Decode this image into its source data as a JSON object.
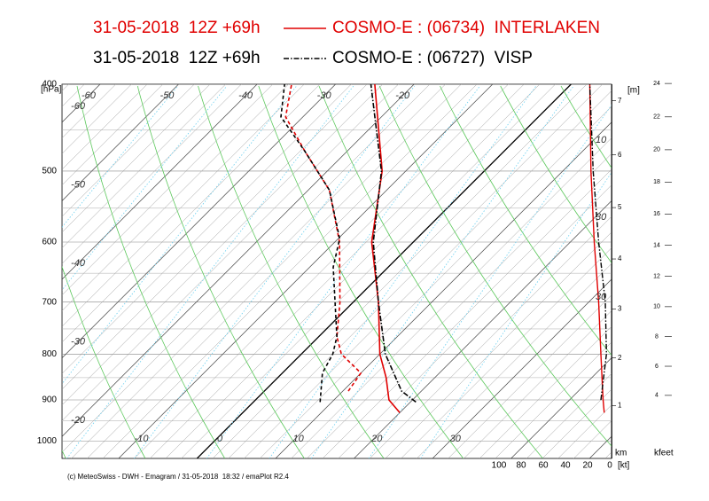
{
  "chart_data": {
    "type": "emagram",
    "stations": [
      {
        "run": "31-05-2018  12Z +69h",
        "name": "COSMO-E : (06734)  INTERLAKEN",
        "color": "#e00000",
        "style": "solid",
        "temperature": {
          "pressure": [
            930,
            900,
            850,
            800,
            700,
            600,
            500,
            400
          ],
          "values": [
            20,
            17,
            13.8,
            10,
            3.2,
            -5.3,
            -13,
            -25
          ]
        },
        "dewpoint": {
          "pressure": [
            880,
            840,
            800,
            765,
            700,
            600,
            525,
            475,
            435,
            400
          ],
          "values": [
            10.7,
            10,
            5.1,
            2.3,
            -1.7,
            -9.4,
            -17.3,
            -25.4,
            -32.2,
            -35.6
          ]
        },
        "wind": {
          "pressure": [
            930,
            900,
            800,
            700,
            600,
            500,
            400
          ],
          "values": [
            5,
            6,
            8,
            10,
            14,
            17,
            18
          ]
        }
      },
      {
        "run": "31-05-2018  12Z +69h",
        "name": "COSMO-E : (06727)  VISP",
        "color": "#000000",
        "style": "dashdot",
        "temperature": {
          "pressure": [
            905,
            880,
            800,
            700,
            600,
            500,
            400
          ],
          "values": [
            20.7,
            17.5,
            10.7,
            3.2,
            -5.1,
            -13.1,
            -25.5
          ]
        },
        "dewpoint": {
          "pressure": [
            905,
            840,
            800,
            765,
            640,
            595,
            525,
            475,
            435,
            400
          ],
          "values": [
            8.5,
            5.1,
            4,
            2.3,
            -7,
            -9.8,
            -17.3,
            -25.4,
            -32.8,
            -36.5
          ]
        },
        "wind": {
          "pressure": [
            900,
            800,
            700,
            600,
            500,
            400
          ],
          "values": [
            8,
            3,
            4,
            10,
            15,
            18
          ]
        }
      }
    ],
    "y_label": "[hPa]",
    "ylim": [
      1046,
      400
    ],
    "yticks": [
      400,
      500,
      600,
      700,
      800,
      900,
      1000
    ],
    "log_y": true,
    "xlim": [
      -17.2,
      52.8
    ],
    "xticks": [
      -10,
      0,
      10,
      20,
      30
    ],
    "isotherm_labels": [
      -60,
      -50,
      -40,
      -30,
      -20
    ],
    "wind_label": "[kt]",
    "wind_lim": [
      100,
      0
    ],
    "wind_ticks": [
      100,
      80,
      60,
      40,
      20,
      0
    ],
    "wind_speed_labels": [
      10,
      30,
      30
    ],
    "height_label": "[m]",
    "height_unit": "km",
    "height_ticks": [
      1,
      2,
      3,
      4,
      5,
      6,
      7
    ],
    "kfeet_label": "kfeet",
    "kfeet_ticks": [
      4,
      6,
      8,
      10,
      12,
      14,
      16,
      18,
      20,
      22,
      24
    ],
    "footer": "(c) MeteoSwiss - DWH - Emagram / 31-05-2018  18:32 / emaPlot R2.4"
  }
}
